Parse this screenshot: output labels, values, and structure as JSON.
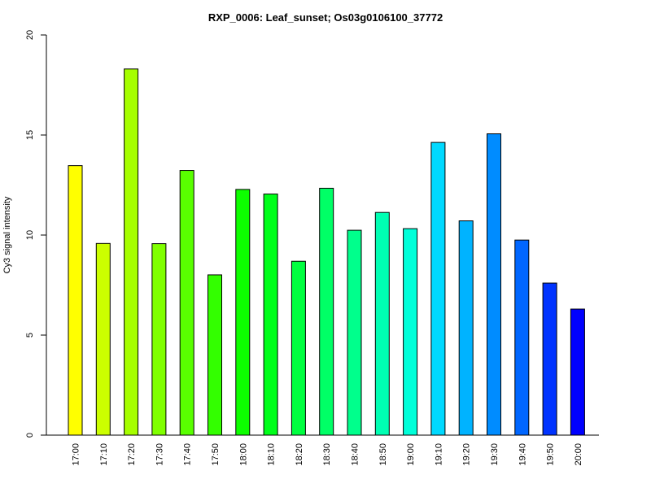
{
  "chart_data": {
    "type": "bar",
    "title": "RXP_0006: Leaf_sunset; Os03g0106100_37772",
    "xlabel": "",
    "ylabel": "Cy3 signal intensity",
    "ylim": [
      0,
      20
    ],
    "yticks": [
      0,
      5,
      10,
      15,
      20
    ],
    "categories": [
      "17:00",
      "17:10",
      "17:20",
      "17:30",
      "17:40",
      "17:50",
      "18:00",
      "18:10",
      "18:20",
      "18:30",
      "18:40",
      "18:50",
      "19:00",
      "19:10",
      "19:20",
      "19:30",
      "19:40",
      "19:50",
      "20:00"
    ],
    "values": [
      13.47,
      9.58,
      18.3,
      9.57,
      13.23,
      8.01,
      12.28,
      12.05,
      8.69,
      12.34,
      10.24,
      11.13,
      10.32,
      14.63,
      10.71,
      15.06,
      9.75,
      7.6,
      6.3
    ],
    "colors": [
      "#FFFF00",
      "#CCFF00",
      "#A6FF00",
      "#80FF00",
      "#59FF00",
      "#33FF00",
      "#0DFF00",
      "#00FF1A",
      "#00FF40",
      "#00FF66",
      "#00FF8C",
      "#00FFB3",
      "#00FFD9",
      "#00D9FF",
      "#00B3FF",
      "#008CFF",
      "#0066FF",
      "#0033FF",
      "#0000FF"
    ],
    "grid": false
  }
}
